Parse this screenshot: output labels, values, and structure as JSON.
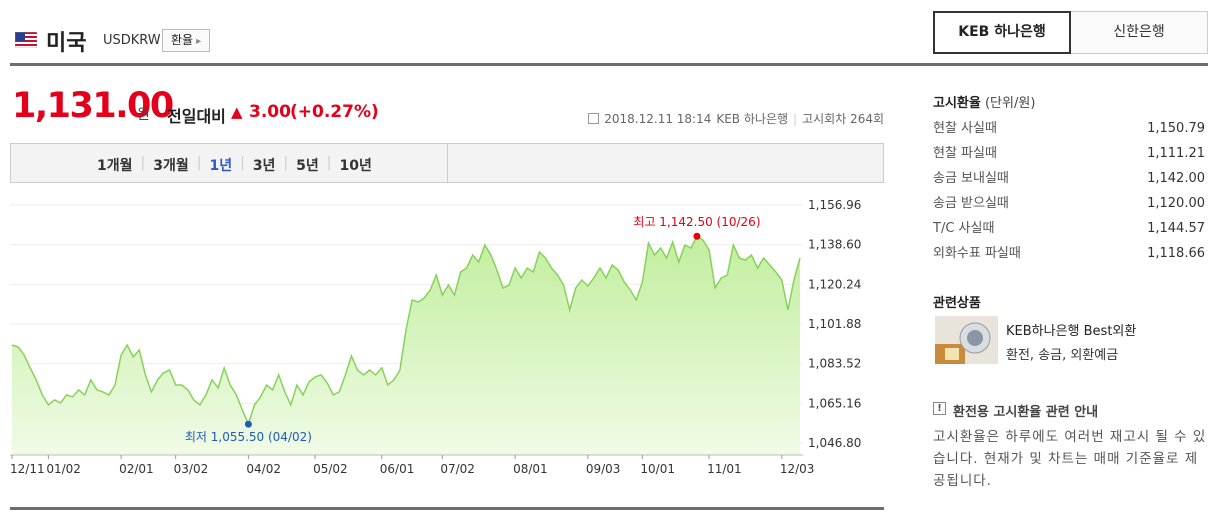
{
  "header": {
    "country": "미국",
    "code": "USDKRW",
    "button": "환율"
  },
  "tabs": [
    "KEB 하나은행",
    "신한은행"
  ],
  "quote": {
    "price": "1,131.00",
    "unit": "원",
    "change_label": "전일대비",
    "change": "3.00",
    "change_pct": "(+0.27%)",
    "datetime": "2018.12.11 18:14",
    "bank": "KEB 하나은행",
    "round": "고시회차 264회"
  },
  "periods": [
    "1개월",
    "3개월",
    "1년",
    "3년",
    "5년",
    "10년"
  ],
  "chart_data": {
    "type": "area",
    "high_label": "최고 1,142.50 (10/26)",
    "low_label": "최저 1,055.50 (04/02)",
    "categories": [
      "12/11",
      null,
      null,
      null,
      null,
      null,
      "01/02",
      null,
      null,
      null,
      null,
      null,
      null,
      null,
      null,
      null,
      null,
      null,
      "02/01",
      null,
      null,
      null,
      null,
      null,
      null,
      null,
      null,
      "03/02",
      null,
      null,
      null,
      null,
      null,
      null,
      null,
      null,
      null,
      null,
      null,
      "04/02",
      null,
      null,
      null,
      null,
      null,
      null,
      null,
      null,
      null,
      null,
      "05/02",
      null,
      null,
      null,
      null,
      null,
      null,
      null,
      null,
      null,
      null,
      "06/01",
      null,
      null,
      null,
      null,
      null,
      null,
      null,
      null,
      null,
      "07/02",
      null,
      null,
      null,
      null,
      null,
      null,
      null,
      null,
      null,
      null,
      null,
      "08/01",
      null,
      null,
      null,
      null,
      null,
      null,
      null,
      null,
      null,
      null,
      null,
      "09/03",
      null,
      null,
      null,
      null,
      null,
      null,
      null,
      null,
      "10/01",
      null,
      null,
      null,
      null,
      null,
      null,
      null,
      null,
      null,
      null,
      "11/01",
      null,
      null,
      null,
      null,
      null,
      null,
      null,
      null,
      null,
      null,
      null,
      "12/03",
      null,
      null,
      null
    ],
    "series": [
      {
        "color": "#86d25a",
        "values": [
          1092.18,
          1091.26,
          1087.55,
          1081.54,
          1075.99,
          1069.05,
          1064.42,
          1066.73,
          1065.35,
          1069.05,
          1068.12,
          1071.36,
          1069.05,
          1075.99,
          1071.36,
          1070.44,
          1069.05,
          1073.67,
          1087.55,
          1092.18,
          1086.63,
          1089.87,
          1078.3,
          1070.44,
          1075.99,
          1079.23,
          1080.61,
          1073.67,
          1073.67,
          1071.36,
          1066.73,
          1064.42,
          1069.05,
          1075.99,
          1072.29,
          1081.54,
          1073.67,
          1069.05,
          1062.11,
          1055.5,
          1064.42,
          1068.12,
          1073.67,
          1071.36,
          1078.3,
          1070.44,
          1064.42,
          1073.67,
          1069.05,
          1075.06,
          1077.38,
          1078.3,
          1074.6,
          1069.05,
          1070.44,
          1078.3,
          1087.09,
          1080.61,
          1078.3,
          1080.61,
          1078.3,
          1081.54,
          1073.67,
          1075.99,
          1080.61,
          1099.12,
          1113.0,
          1112.08,
          1113.93,
          1117.63,
          1124.57,
          1115.32,
          1119.94,
          1115.32,
          1125.96,
          1127.81,
          1133.82,
          1130.59,
          1138.45,
          1133.82,
          1126.88,
          1118.56,
          1119.94,
          1127.81,
          1123.18,
          1127.81,
          1125.96,
          1135.21,
          1132.44,
          1127.81,
          1124.57,
          1119.94,
          1108.38,
          1118.56,
          1122.26,
          1119.48,
          1123.18,
          1127.81,
          1123.18,
          1129.2,
          1126.88,
          1121.33,
          1117.63,
          1113.0,
          1121.33,
          1139.38,
          1133.82,
          1137.06,
          1132.44,
          1139.84,
          1130.59,
          1138.45,
          1137.06,
          1142.5,
          1140.77,
          1136.14,
          1118.56,
          1123.18,
          1124.57,
          1138.45,
          1132.44,
          1131.51,
          1133.82,
          1127.81,
          1132.44,
          1129.2,
          1125.96,
          1122.26,
          1108.38,
          1122.26,
          1132.44
        ]
      }
    ],
    "ylim": [
      1041.25,
      1159.27
    ],
    "yticks": [
      {
        "value": 1046.8,
        "label": "1,046.80"
      },
      {
        "value": 1065.16,
        "label": "1,065.16"
      },
      {
        "value": 1083.52,
        "label": "1,083.52"
      },
      {
        "value": 1101.88,
        "label": "1,101.88"
      },
      {
        "value": 1120.24,
        "label": "1,120.24"
      },
      {
        "value": 1138.6,
        "label": "1,138.60"
      },
      {
        "value": 1156.96,
        "label": "1,156.96"
      }
    ],
    "grid": true
  },
  "rates": {
    "title": "고시환율",
    "unit": "(단위/원)",
    "rows": [
      [
        "현찰 사실때",
        "1,150.79"
      ],
      [
        "현찰 파실때",
        "1,111.21"
      ],
      [
        "송금 보내실때",
        "1,142.00"
      ],
      [
        "송금 받으실때",
        "1,120.00"
      ],
      [
        "T/C 사실때",
        "1,144.57"
      ],
      [
        "외화수표 파실때",
        "1,118.66"
      ]
    ]
  },
  "related": {
    "title": "관련상품",
    "name": "KEB하나은행 Best외환",
    "desc": "환전, 송금, 외환예금"
  },
  "notice": {
    "title": "환전용 고시환율 관련 안내",
    "text": "고시환율은 하루에도 여러번 재고시 될 수 있습니다. 현재가 및 차트는 매매 기준율로 제공됩니다."
  }
}
